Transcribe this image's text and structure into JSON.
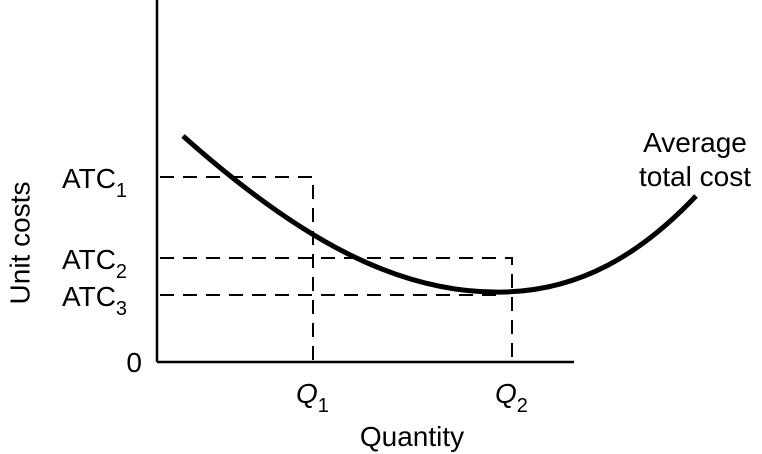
{
  "y_axis": {
    "label": "Unit costs",
    "origin": "0",
    "levels": [
      {
        "text": "ATC",
        "sub": "1"
      },
      {
        "text": "ATC",
        "sub": "2"
      },
      {
        "text": "ATC",
        "sub": "3"
      }
    ]
  },
  "x_axis": {
    "label": "Quantity",
    "levels": [
      {
        "text": "Q",
        "sub": "1"
      },
      {
        "text": "Q",
        "sub": "2"
      }
    ]
  },
  "curve": {
    "label_lines": [
      "Average",
      "total cost"
    ]
  }
}
